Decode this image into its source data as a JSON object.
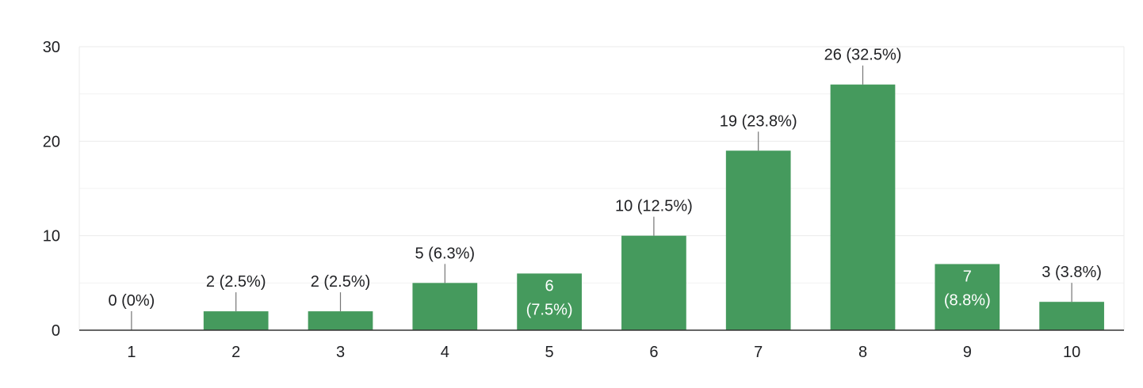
{
  "chart_data": {
    "type": "bar",
    "categories": [
      "1",
      "2",
      "3",
      "4",
      "5",
      "6",
      "7",
      "8",
      "9",
      "10"
    ],
    "values": [
      0,
      2,
      2,
      5,
      6,
      10,
      19,
      26,
      7,
      3
    ],
    "data_labels": [
      "0 (0%)",
      "2 (2.5%)",
      "2 (2.5%)",
      "5 (6.3%)",
      "6 (7.5%)",
      "10 (12.5%)",
      "19 (23.8%)",
      "26 (32.5%)",
      "7 (8.8%)",
      "3 (3.8%)"
    ],
    "y_ticks": [
      0,
      10,
      20,
      30
    ],
    "ylim": [
      0,
      30
    ],
    "grid": true,
    "bar_color": "#459a5d",
    "title": "",
    "xlabel": "",
    "ylabel": ""
  }
}
